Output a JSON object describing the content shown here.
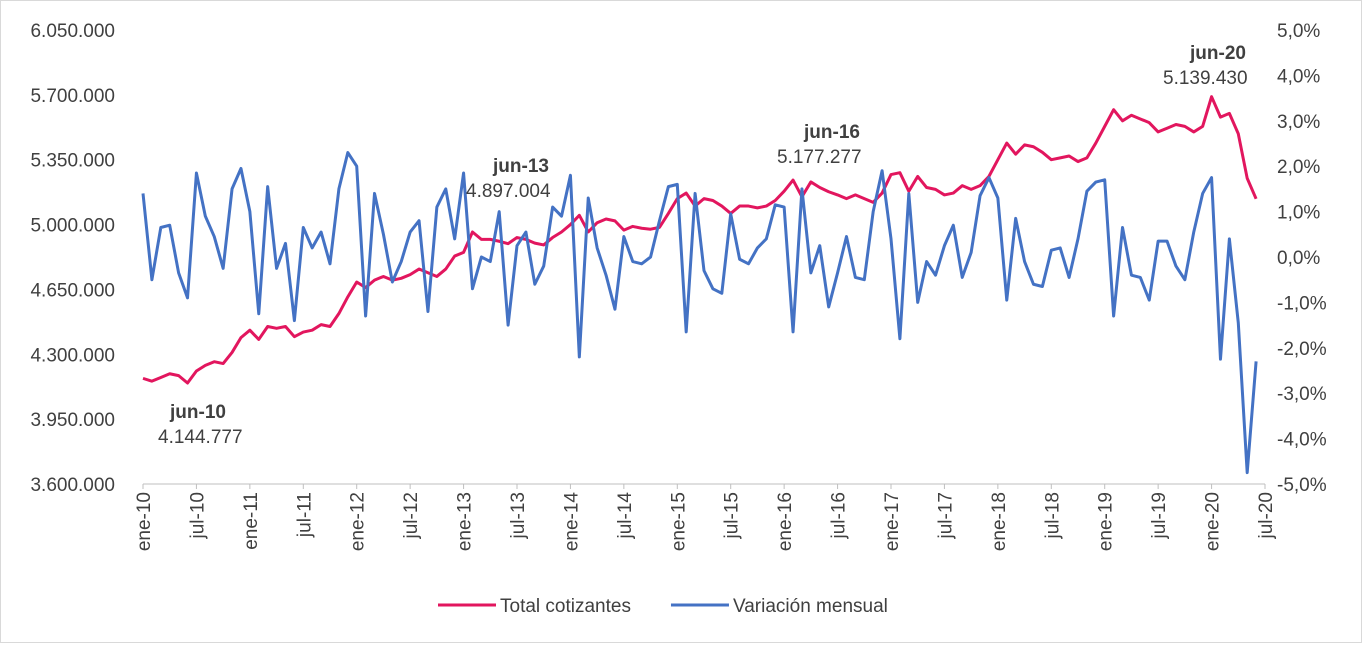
{
  "chart_data": {
    "type": "line",
    "categories": [
      "ene-10",
      null,
      null,
      null,
      null,
      null,
      "jul-10",
      null,
      null,
      null,
      null,
      null,
      "ene-11",
      null,
      null,
      null,
      null,
      null,
      "jul-11",
      null,
      null,
      null,
      null,
      null,
      "ene-12",
      null,
      null,
      null,
      null,
      null,
      "jul-12",
      null,
      null,
      null,
      null,
      null,
      "ene-13",
      null,
      null,
      null,
      null,
      null,
      "jul-13",
      null,
      null,
      null,
      null,
      null,
      "ene-14",
      null,
      null,
      null,
      null,
      null,
      "jul-14",
      null,
      null,
      null,
      null,
      null,
      "ene-15",
      null,
      null,
      null,
      null,
      null,
      "jul-15",
      null,
      null,
      null,
      null,
      null,
      "ene-16",
      null,
      null,
      null,
      null,
      null,
      "jul-16",
      null,
      null,
      null,
      null,
      null,
      "ene-17",
      null,
      null,
      null,
      null,
      null,
      "jul-17",
      null,
      null,
      null,
      null,
      null,
      "ene-18",
      null,
      null,
      null,
      null,
      null,
      "jul-18",
      null,
      null,
      null,
      null,
      null,
      "ene-19",
      null,
      null,
      null,
      null,
      null,
      "jul-19",
      null,
      null,
      null,
      null,
      null,
      "ene-20",
      null,
      null,
      null,
      null,
      null,
      "jul-20"
    ],
    "series": [
      {
        "name": "Total cotizantes",
        "color": "#e2165e",
        "axis": "y",
        "values": [
          4170000,
          4155000,
          4175000,
          4195000,
          4185000,
          4145000,
          4210000,
          4240000,
          4260000,
          4250000,
          4310000,
          4390000,
          4430000,
          4380000,
          4450000,
          4440000,
          4450000,
          4395000,
          4420000,
          4430000,
          4460000,
          4450000,
          4520000,
          4610000,
          4690000,
          4660000,
          4700000,
          4720000,
          4700000,
          4710000,
          4730000,
          4760000,
          4740000,
          4720000,
          4760000,
          4830000,
          4850000,
          4960000,
          4920000,
          4920000,
          4910000,
          4897000,
          4930000,
          4920000,
          4900000,
          4890000,
          4930000,
          4960000,
          5000000,
          5050000,
          4960000,
          5010000,
          5030000,
          5020000,
          4970000,
          4990000,
          4980000,
          4975000,
          4985000,
          5060000,
          5140000,
          5170000,
          5100000,
          5140000,
          5130000,
          5100000,
          5060000,
          5100000,
          5100000,
          5090000,
          5100000,
          5130000,
          5180000,
          5240000,
          5150000,
          5230000,
          5200000,
          5177000,
          5160000,
          5140000,
          5160000,
          5140000,
          5120000,
          5170000,
          5270000,
          5280000,
          5180000,
          5260000,
          5200000,
          5190000,
          5160000,
          5170000,
          5210000,
          5190000,
          5210000,
          5260000,
          5350000,
          5440000,
          5380000,
          5430000,
          5420000,
          5390000,
          5350000,
          5360000,
          5370000,
          5340000,
          5360000,
          5440000,
          5530000,
          5620000,
          5560000,
          5590000,
          5570000,
          5550000,
          5500000,
          5520000,
          5540000,
          5530000,
          5500000,
          5530000,
          5690000,
          5580000,
          5600000,
          5490000,
          5250000,
          5139000,
          null
        ]
      },
      {
        "name": "Variación mensual",
        "color": "#4472c4",
        "axis": "y2",
        "values": [
          1.4,
          -0.5,
          0.65,
          0.7,
          -0.35,
          -0.9,
          1.85,
          0.9,
          0.45,
          -0.25,
          1.5,
          1.95,
          1.0,
          -1.25,
          1.55,
          -0.25,
          0.3,
          -1.4,
          0.65,
          0.2,
          0.55,
          -0.15,
          1.5,
          2.3,
          2.0,
          -1.3,
          1.4,
          0.5,
          -0.55,
          -0.1,
          0.55,
          0.8,
          -1.2,
          1.1,
          1.5,
          0.4,
          1.85,
          -0.7,
          0.0,
          -0.1,
          1.0,
          -1.5,
          0.25,
          0.55,
          -0.6,
          -0.2,
          1.1,
          0.9,
          1.8,
          -2.2,
          1.3,
          0.2,
          -0.4,
          -1.15,
          0.45,
          -0.1,
          -0.15,
          0.0,
          0.8,
          1.55,
          1.6,
          -1.65,
          1.4,
          -0.3,
          -0.7,
          -0.8,
          0.95,
          -0.05,
          -0.15,
          0.2,
          0.4,
          1.15,
          1.1,
          -1.65,
          1.5,
          -0.35,
          0.25,
          -1.1,
          -0.35,
          0.45,
          -0.45,
          -0.5,
          1.0,
          1.9,
          0.4,
          -1.8,
          1.4,
          -1.0,
          -0.1,
          -0.4,
          0.25,
          0.7,
          -0.45,
          0.1,
          1.35,
          1.75,
          1.3,
          -0.95,
          0.85,
          -0.1,
          -0.6,
          -0.65,
          0.15,
          0.2,
          -0.45,
          0.4,
          1.45,
          1.65,
          1.7,
          -1.3,
          0.65,
          -0.4,
          -0.45,
          -0.95,
          0.35,
          0.35,
          -0.2,
          -0.5,
          0.55,
          1.4,
          1.75,
          -2.25,
          0.4,
          -1.45,
          -4.75,
          -2.3,
          null
        ]
      }
    ],
    "ylim": [
      3600000,
      6050000
    ],
    "yticks": [
      {
        "value": 3600000,
        "label": "3.600.000"
      },
      {
        "value": 3950000,
        "label": "3.950.000"
      },
      {
        "value": 4300000,
        "label": "4.300.000"
      },
      {
        "value": 4650000,
        "label": "4.650.000"
      },
      {
        "value": 5000000,
        "label": "5.000.000"
      },
      {
        "value": 5350000,
        "label": "5.350.000"
      },
      {
        "value": 5700000,
        "label": "5.700.000"
      },
      {
        "value": 6050000,
        "label": "6.050.000"
      }
    ],
    "y2lim": [
      -5,
      5
    ],
    "y2ticks": [
      {
        "value": -5,
        "label": "-5,0%"
      },
      {
        "value": -4,
        "label": "-4,0%"
      },
      {
        "value": -3,
        "label": "-3,0%"
      },
      {
        "value": -2,
        "label": "-2,0%"
      },
      {
        "value": -1,
        "label": "-1,0%"
      },
      {
        "value": 0,
        "label": "0,0%"
      },
      {
        "value": 1,
        "label": "1,0%"
      },
      {
        "value": 2,
        "label": "2,0%"
      },
      {
        "value": 3,
        "label": "3,0%"
      },
      {
        "value": 4,
        "label": "4,0%"
      },
      {
        "value": 5,
        "label": "5,0%"
      }
    ],
    "grid": false,
    "legend": "bottom",
    "annotations": [
      {
        "title": "jun-10",
        "text": "4.144.777"
      },
      {
        "title": "jun-13",
        "text": "4.897.004"
      },
      {
        "title": "jun-16",
        "text": "5.177.277"
      },
      {
        "title": "jun-20",
        "text": "5.139.430"
      }
    ]
  }
}
